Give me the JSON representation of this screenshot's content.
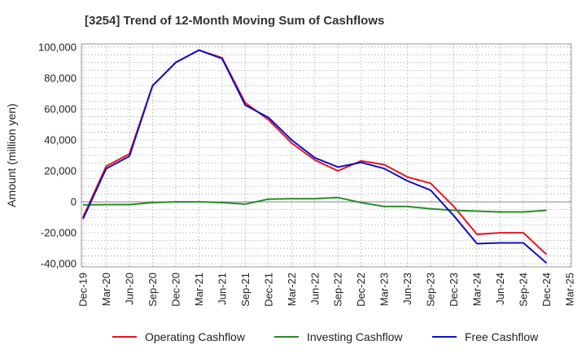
{
  "chart_data": {
    "type": "line",
    "title": "[3254]  Trend of 12-Month Moving Sum of Cashflows",
    "ylabel": "Amount (million yen)",
    "xlabel": "",
    "ylim": [
      -42000,
      102000
    ],
    "yticks": [
      100000,
      80000,
      60000,
      40000,
      20000,
      0,
      -20000,
      -40000
    ],
    "ytick_labels": [
      "100,000",
      "80,000",
      "60,000",
      "40,000",
      "20,000",
      "0",
      "-20,000",
      "-40,000"
    ],
    "x": [
      "Dec-19",
      "Mar-20",
      "Jun-20",
      "Sep-20",
      "Dec-20",
      "Mar-21",
      "Jun-21",
      "Sep-21",
      "Dec-21",
      "Mar-22",
      "Jun-22",
      "Sep-22",
      "Dec-22",
      "Mar-23",
      "Jun-23",
      "Sep-23",
      "Dec-23",
      "Mar-24",
      "Jun-24",
      "Sep-24",
      "Dec-24",
      "Mar-25"
    ],
    "grid": true,
    "legend_position": "bottom",
    "series": [
      {
        "name": "Operating Cashflow",
        "color": "#e8141e",
        "values": [
          -10000,
          23000,
          31000,
          75000,
          90000,
          98000,
          93000,
          64000,
          53000,
          38000,
          27000,
          20000,
          26500,
          24000,
          16000,
          12000,
          -3000,
          -21000,
          -20000,
          -20000,
          -34000,
          null
        ]
      },
      {
        "name": "Investing Cashflow",
        "color": "#2a8a2a",
        "values": [
          -2000,
          -1800,
          -1800,
          -500,
          0,
          0,
          -500,
          -1500,
          1800,
          2000,
          2000,
          2800,
          -500,
          -3000,
          -3000,
          -4500,
          -5500,
          -6000,
          -6500,
          -6500,
          -5500,
          null
        ]
      },
      {
        "name": "Free Cashflow",
        "color": "#1010c8",
        "values": [
          -11000,
          21500,
          29500,
          75000,
          90000,
          98000,
          92500,
          62500,
          54500,
          40000,
          28500,
          22500,
          25500,
          21500,
          13500,
          7500,
          -9000,
          -27000,
          -26500,
          -26500,
          -39500,
          null
        ]
      }
    ]
  }
}
